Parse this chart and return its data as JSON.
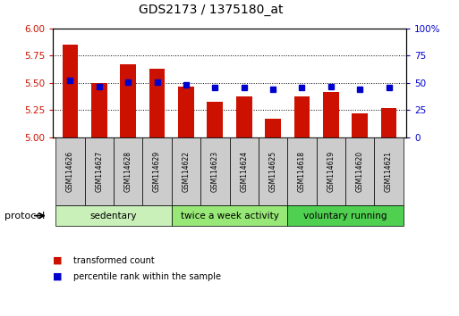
{
  "title": "GDS2173 / 1375180_at",
  "samples": [
    "GSM114626",
    "GSM114627",
    "GSM114628",
    "GSM114629",
    "GSM114622",
    "GSM114623",
    "GSM114624",
    "GSM114625",
    "GSM114618",
    "GSM114619",
    "GSM114620",
    "GSM114621"
  ],
  "transformed_count": [
    5.85,
    5.5,
    5.67,
    5.63,
    5.47,
    5.33,
    5.38,
    5.17,
    5.38,
    5.42,
    5.22,
    5.27
  ],
  "percentile_rank": [
    52,
    47,
    51,
    51,
    48,
    46,
    46,
    44,
    46,
    47,
    44,
    46
  ],
  "groups": [
    {
      "label": "sedentary",
      "start": 0,
      "end": 4,
      "color": "#c8f0b8"
    },
    {
      "label": "twice a week activity",
      "start": 4,
      "end": 8,
      "color": "#98e878"
    },
    {
      "label": "voluntary running",
      "start": 8,
      "end": 12,
      "color": "#50d050"
    }
  ],
  "bar_color": "#cc1100",
  "dot_color": "#0000cc",
  "ylim_left": [
    5.0,
    6.0
  ],
  "ylim_right": [
    0,
    100
  ],
  "yticks_left": [
    5.0,
    5.25,
    5.5,
    5.75,
    6.0
  ],
  "yticks_right": [
    0,
    25,
    50,
    75,
    100
  ],
  "left_tick_color": "#cc1100",
  "right_tick_color": "#0000cc",
  "protocol_label": "protocol",
  "legend_bar_label": "transformed count",
  "legend_dot_label": "percentile rank within the sample",
  "bg_color": "#ffffff",
  "sample_box_color": "#cccccc",
  "title_fontsize": 10,
  "bar_width": 0.55
}
